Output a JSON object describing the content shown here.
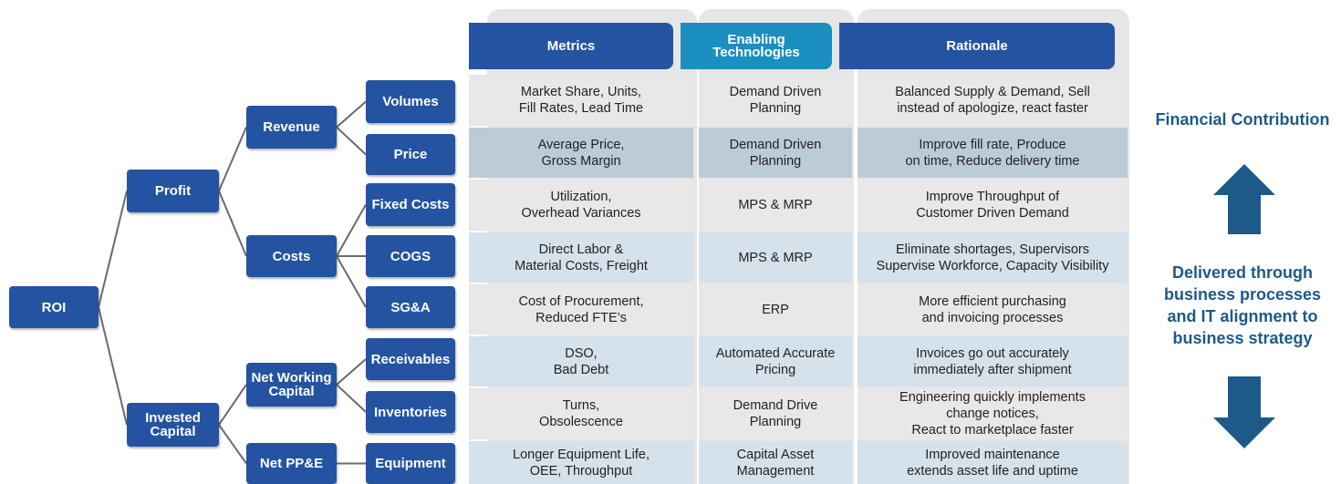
{
  "tree": {
    "nodes": [
      {
        "label": "ROI"
      },
      {
        "label": "Profit"
      },
      {
        "label": "Invested\nCapital"
      },
      {
        "label": "Revenue"
      },
      {
        "label": "Costs"
      },
      {
        "label": "Net Working\nCapital"
      },
      {
        "label": "Net PP&E"
      },
      {
        "label": "Volumes"
      },
      {
        "label": "Price"
      },
      {
        "label": "Fixed Costs"
      },
      {
        "label": "COGS"
      },
      {
        "label": "SG&A"
      },
      {
        "label": "Receivables"
      },
      {
        "label": "Inventories"
      },
      {
        "label": "Equipment"
      }
    ]
  },
  "table": {
    "headers": [
      "Metrics",
      "Enabling\nTechnologies",
      "Rationale"
    ],
    "rows": [
      [
        "Market Share, Units,\nFill Rates, Lead Time",
        "Demand Driven\nPlanning",
        "Balanced Supply & Demand, Sell\ninstead of apologize, react faster"
      ],
      [
        "Average Price,\nGross Margin",
        "Demand Driven\nPlanning",
        "Improve fill rate, Produce\non time, Reduce delivery time"
      ],
      [
        "Utilization,\nOverhead Variances",
        "MPS & MRP",
        "Improve Throughput of\nCustomer Driven Demand"
      ],
      [
        "Direct Labor &\nMaterial Costs, Freight",
        "MPS & MRP",
        "Eliminate shortages, Supervisors\nSupervise Workforce, Capacity Visibility"
      ],
      [
        "Cost of Procurement,\nReduced FTE’s",
        "ERP",
        "More efficient purchasing\nand invoicing processes"
      ],
      [
        "DSO,\nBad Debt",
        "Automated Accurate\nPricing",
        "Invoices go out accurately\nimmediately after shipment"
      ],
      [
        "Turns,\nObsolescence",
        "Demand Drive\nPlanning",
        "Engineering quickly implements\nchange notices,\nReact to marketplace faster"
      ],
      [
        "Longer Equipment Life,\nOEE, Throughput",
        "Capital Asset\nManagement",
        "Improved maintenance\nextends asset life and uptime"
      ]
    ]
  },
  "side": {
    "top": "Financial Contribution",
    "middle": "Delivered through\nbusiness processes\nand IT alignment to\nbusiness strategy"
  }
}
